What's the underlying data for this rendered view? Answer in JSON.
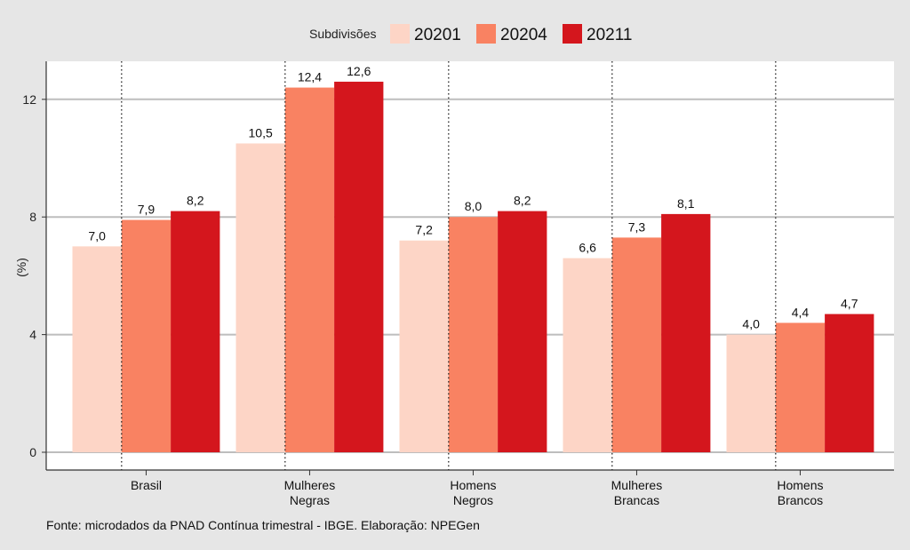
{
  "chart_data": {
    "type": "bar",
    "title": "",
    "xlabel": "",
    "ylabel": "(%)",
    "ylim": [
      0,
      13.2
    ],
    "yticks": [
      0,
      4,
      8,
      12
    ],
    "grid": "horizontal",
    "legend_position": "top",
    "legend_title": "Subdivisões",
    "categories": [
      "Brasil",
      "Mulheres\nNegras",
      "Homens\nNegros",
      "Mulheres\nBrancas",
      "Homens\nBrancos"
    ],
    "series": [
      {
        "name": "20201",
        "color": "#fdd5c6",
        "values": [
          7.0,
          10.5,
          7.2,
          6.6,
          4.0
        ],
        "labels": [
          "7,0",
          "10,5",
          "7,2",
          "6,6",
          "4,0"
        ]
      },
      {
        "name": "20204",
        "color": "#f98262",
        "values": [
          7.9,
          12.4,
          8.0,
          7.3,
          4.4
        ],
        "labels": [
          "7,9",
          "12,4",
          "8,0",
          "7,3",
          "4,4"
        ]
      },
      {
        "name": "20211",
        "color": "#d4161d",
        "values": [
          8.2,
          12.6,
          8.2,
          8.1,
          4.7
        ],
        "labels": [
          "8,2",
          "12,6",
          "8,2",
          "8,1",
          "4,7"
        ]
      }
    ],
    "caption": "Fonte: microdados da PNAD Contínua trimestral - IBGE. Elaboração: NPEGen"
  }
}
